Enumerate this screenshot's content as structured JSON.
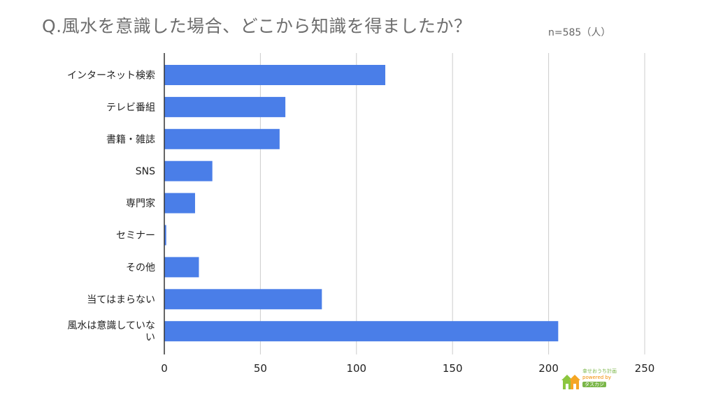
{
  "header": {
    "title": "Q.風水を意識した場合、どこから知識を得ましたか？",
    "sample_size": "n=585（人）"
  },
  "chart_data": {
    "type": "bar",
    "orientation": "horizontal",
    "title": "Q.風水を意識した場合、どこから知識を得ましたか？",
    "categories": [
      "インターネット検索",
      "テレビ番組",
      "書籍・雑誌",
      "SNS",
      "専門家",
      "セミナー",
      "その他",
      "当てはまらない",
      "風水は意識していない"
    ],
    "category_lines": [
      [
        "インターネット検索"
      ],
      [
        "テレビ番組"
      ],
      [
        "書籍・雑誌"
      ],
      [
        "SNS"
      ],
      [
        "専門家"
      ],
      [
        "セミナー"
      ],
      [
        "その他"
      ],
      [
        "当てはまらない"
      ],
      [
        "風水は意識していな",
        "い"
      ]
    ],
    "values": [
      115,
      63,
      60,
      25,
      16,
      1,
      18,
      82,
      205
    ],
    "xlim": [
      0,
      250
    ],
    "xticks": [
      0,
      50,
      100,
      150,
      200,
      250
    ],
    "xlabel": "",
    "ylabel": "",
    "grid": "vertical",
    "legend": "none",
    "bar_color": "#4a7ee8",
    "grid_color": "#cccccc",
    "axis_color": "#333333"
  },
  "logo": {
    "line1": "幸せおうち計画",
    "line2": "powered by",
    "line3": "タスカジ"
  }
}
